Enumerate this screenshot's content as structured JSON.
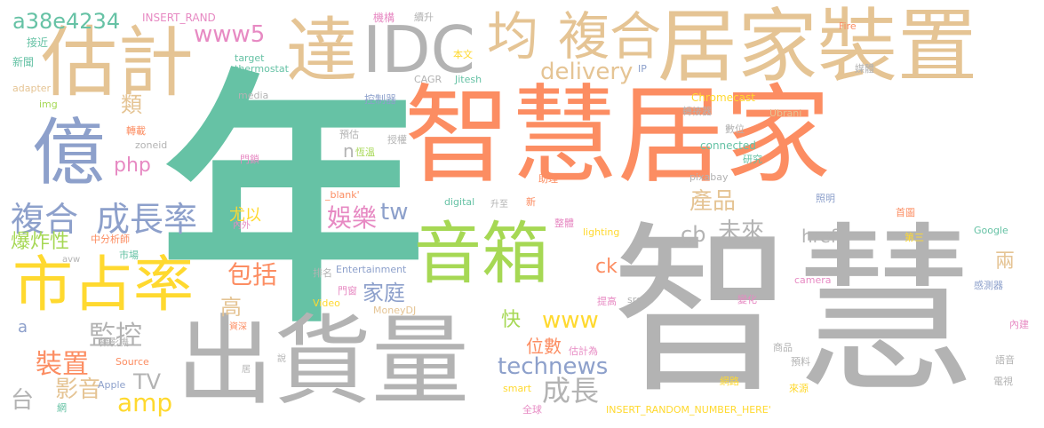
{
  "palette": {
    "teal": "#66c2a5",
    "orange": "#fc8d62",
    "blue": "#8da0cb",
    "pink": "#e78ac3",
    "lime": "#a6d854",
    "yellow": "#ffd92f",
    "tan": "#e5c494",
    "gray": "#b3b3b3"
  },
  "words": [
    {
      "id": "nian",
      "text": "年",
      "color": "#66c2a5"
    },
    {
      "id": "zhihui-jujia",
      "text": "智慧居家",
      "color": "#fc8d62"
    },
    {
      "id": "zhihui",
      "text": "智慧",
      "color": "#b3b3b3"
    },
    {
      "id": "chuhuoliang",
      "text": "出貨量",
      "color": "#b3b3b3"
    },
    {
      "id": "jujia-zhuangzhi",
      "text": "居家裝置",
      "color": "#e5c494"
    },
    {
      "id": "guji",
      "text": "估計",
      "color": "#e5c494"
    },
    {
      "id": "da",
      "text": "達",
      "color": "#e5c494"
    },
    {
      "id": "idc",
      "text": "IDC",
      "color": "#b3b3b3"
    },
    {
      "id": "jun",
      "text": "均",
      "color": "#e5c494"
    },
    {
      "id": "fuhe-top",
      "text": "複合",
      "color": "#e5c494"
    },
    {
      "id": "yi",
      "text": "億",
      "color": "#8da0cb"
    },
    {
      "id": "shizhanlv",
      "text": "市占率",
      "color": "#ffd92f"
    },
    {
      "id": "yinxiang",
      "text": "音箱",
      "color": "#a6d854"
    },
    {
      "id": "fuhe",
      "text": "複合",
      "color": "#8da0cb"
    },
    {
      "id": "chengzhanglv",
      "text": "成長率",
      "color": "#8da0cb"
    },
    {
      "id": "a38e",
      "text": "a38e4234",
      "color": "#66c2a5"
    },
    {
      "id": "insert-rand",
      "text": "INSERT_RAND",
      "color": "#e78ac3"
    },
    {
      "id": "www5",
      "text": "www5",
      "color": "#e78ac3"
    },
    {
      "id": "delivery",
      "text": "delivery",
      "color": "#e5c494"
    },
    {
      "id": "technews",
      "text": "technews",
      "color": "#8da0cb"
    },
    {
      "id": "chengzhang",
      "text": "成長",
      "color": "#b3b3b3"
    },
    {
      "id": "amp",
      "text": "amp",
      "color": "#ffd92f"
    },
    {
      "id": "tv",
      "text": "TV",
      "color": "#b3b3b3"
    },
    {
      "id": "jiankong",
      "text": "監控",
      "color": "#b3b3b3"
    },
    {
      "id": "zhuangzhi",
      "text": "裝置",
      "color": "#fc8d62"
    },
    {
      "id": "yingyin",
      "text": "影音",
      "color": "#e5c494"
    },
    {
      "id": "tai",
      "text": "台",
      "color": "#b3b3b3"
    },
    {
      "id": "baozhaxing",
      "text": "爆炸性",
      "color": "#a6d854"
    },
    {
      "id": "php",
      "text": "php",
      "color": "#e78ac3"
    },
    {
      "id": "lei",
      "text": "類",
      "color": "#e5c494"
    },
    {
      "id": "baokuo",
      "text": "包括",
      "color": "#fc8d62"
    },
    {
      "id": "gao",
      "text": "高",
      "color": "#e5c494"
    },
    {
      "id": "yule",
      "text": "娛樂",
      "color": "#e78ac3"
    },
    {
      "id": "jiating",
      "text": "家庭",
      "color": "#8da0cb"
    },
    {
      "id": "tw",
      "text": "tw",
      "color": "#8da0cb"
    },
    {
      "id": "cb",
      "text": "cb",
      "color": "#b3b3b3"
    },
    {
      "id": "weilai",
      "text": "未來",
      "color": "#b3b3b3"
    },
    {
      "id": "chanpin",
      "text": "產品",
      "color": "#e5c494"
    },
    {
      "id": "href",
      "text": "href",
      "color": "#b3b3b3"
    },
    {
      "id": "liang",
      "text": "兩",
      "color": "#e5c494"
    },
    {
      "id": "ck",
      "text": "ck",
      "color": "#fc8d62"
    },
    {
      "id": "www",
      "text": "www",
      "color": "#ffd92f"
    },
    {
      "id": "kuai",
      "text": "快",
      "color": "#a6d854"
    },
    {
      "id": "weishu",
      "text": "位數",
      "color": "#fc8d62"
    },
    {
      "id": "youyi",
      "text": "尤以",
      "color": "#ffd92f"
    },
    {
      "id": "n",
      "text": "n",
      "color": "#b3b3b3"
    },
    {
      "id": "a",
      "text": "a",
      "color": "#8da0cb"
    },
    {
      "id": "jiejin",
      "text": "接近",
      "color": "#66c2a5"
    },
    {
      "id": "xinwen",
      "text": "新聞",
      "color": "#66c2a5"
    },
    {
      "id": "adapter",
      "text": "adapter",
      "color": "#e5c494"
    },
    {
      "id": "img",
      "text": "img",
      "color": "#a6d854"
    },
    {
      "id": "target",
      "text": "target",
      "color": "#66c2a5"
    },
    {
      "id": "thermostat",
      "text": "thermostat",
      "color": "#66c2a5"
    },
    {
      "id": "media",
      "text": "media",
      "color": "#b3b3b3"
    },
    {
      "id": "zhuanzai",
      "text": "轉載",
      "color": "#fc8d62"
    },
    {
      "id": "zoneid",
      "text": "zoneid",
      "color": "#b3b3b3"
    },
    {
      "id": "mensuo",
      "text": "門鎖",
      "color": "#e78ac3"
    },
    {
      "id": "zhongfenxishi",
      "text": "中分析師",
      "color": "#fc8d62"
    },
    {
      "id": "avw",
      "text": "avw",
      "color": "#b3b3b3"
    },
    {
      "id": "shichang",
      "text": "市場",
      "color": "#66c2a5"
    },
    {
      "id": "jidui",
      "text": "機構",
      "color": "#e78ac3"
    },
    {
      "id": "xusheng",
      "text": "續升",
      "color": "#b3b3b3"
    },
    {
      "id": "benwen",
      "text": "本文",
      "color": "#ffd92f"
    },
    {
      "id": "cagr",
      "text": "CAGR",
      "color": "#b3b3b3"
    },
    {
      "id": "jitesh",
      "text": "Jitesh",
      "color": "#66c2a5"
    },
    {
      "id": "kongzhiqi",
      "text": "控制器",
      "color": "#8da0cb"
    },
    {
      "id": "yugu",
      "text": "預估",
      "color": "#b3b3b3"
    },
    {
      "id": "hengwen",
      "text": "恆溫",
      "color": "#a6d854"
    },
    {
      "id": "shoubian",
      "text": "授權",
      "color": "#b3b3b3"
    },
    {
      "id": "ip",
      "text": "IP",
      "color": "#8da0cb"
    },
    {
      "id": "fire",
      "text": "Fire",
      "color": "#fc8d62"
    },
    {
      "id": "meiti",
      "text": "媒體",
      "color": "#b3b3b3"
    },
    {
      "id": "chromecast",
      "text": "Chromecast",
      "color": "#ffd92f"
    },
    {
      "id": "zhuanjieqi",
      "text": "轉接器",
      "color": "#b3b3b3"
    },
    {
      "id": "ubrani",
      "text": "Ubrani",
      "color": "#e5c494"
    },
    {
      "id": "shuwei",
      "text": "數位",
      "color": "#b3b3b3"
    },
    {
      "id": "connected",
      "text": "connected",
      "color": "#66c2a5"
    },
    {
      "id": "yanjiu",
      "text": "研究",
      "color": "#66c2a5"
    },
    {
      "id": "zhuli",
      "text": "助理",
      "color": "#fc8d62"
    },
    {
      "id": "pixabay",
      "text": "pixabay",
      "color": "#b3b3b3"
    },
    {
      "id": "digital",
      "text": "digital",
      "color": "#66c2a5"
    },
    {
      "id": "blank",
      "text": "_blank'",
      "color": "#fc8d62"
    },
    {
      "id": "neiwai",
      "text": "內外",
      "color": "#e78ac3"
    },
    {
      "id": "xin",
      "text": "新",
      "color": "#fc8d62"
    },
    {
      "id": "zhengti",
      "text": "整體",
      "color": "#e78ac3"
    },
    {
      "id": "zhaoming",
      "text": "照明",
      "color": "#8da0cb"
    },
    {
      "id": "shoutu",
      "text": "首圖",
      "color": "#fc8d62"
    },
    {
      "id": "google",
      "text": "Google",
      "color": "#66c2a5"
    },
    {
      "id": "disan",
      "text": "第三",
      "color": "#ffd92f"
    },
    {
      "id": "shengzhi",
      "text": "升至",
      "color": "#b3b3b3"
    },
    {
      "id": "lighting",
      "text": "lighting",
      "color": "#ffd92f"
    },
    {
      "id": "paiming",
      "text": "排名",
      "color": "#b3b3b3"
    },
    {
      "id": "entertainment",
      "text": "Entertainment",
      "color": "#8da0cb"
    },
    {
      "id": "menchuang",
      "text": "門窗",
      "color": "#e78ac3"
    },
    {
      "id": "video",
      "text": "Video",
      "color": "#ffd92f"
    },
    {
      "id": "moneydj",
      "text": "MoneyDJ",
      "color": "#e5c494"
    },
    {
      "id": "tigao",
      "text": "提高",
      "color": "#e78ac3"
    },
    {
      "id": "src",
      "text": "src",
      "color": "#b3b3b3"
    },
    {
      "id": "bianhua",
      "text": "變化",
      "color": "#e78ac3"
    },
    {
      "id": "camera",
      "text": "camera",
      "color": "#e78ac3"
    },
    {
      "id": "ganceqi",
      "text": "感測器",
      "color": "#8da0cb"
    },
    {
      "id": "ziliao",
      "text": "資深",
      "color": "#fc8d62"
    },
    {
      "id": "sheyingji",
      "text": "攝影機",
      "color": "#b3b3b3"
    },
    {
      "id": "gujiwei",
      "text": "估計為",
      "color": "#e78ac3"
    },
    {
      "id": "neijian",
      "text": "內建",
      "color": "#e78ac3"
    },
    {
      "id": "shangpin",
      "text": "商品",
      "color": "#b3b3b3"
    },
    {
      "id": "yuliao",
      "text": "預料",
      "color": "#b3b3b3"
    },
    {
      "id": "source",
      "text": "Source",
      "color": "#fc8d62"
    },
    {
      "id": "ju",
      "text": "居",
      "color": "#b3b3b3"
    },
    {
      "id": "shuo",
      "text": "說",
      "color": "#b3b3b3"
    },
    {
      "id": "apple",
      "text": "Apple",
      "color": "#8da0cb"
    },
    {
      "id": "smart",
      "text": "smart",
      "color": "#ffd92f"
    },
    {
      "id": "wanglu",
      "text": "網路",
      "color": "#ffd92f"
    },
    {
      "id": "laiyuan",
      "text": "來源",
      "color": "#ffd92f"
    },
    {
      "id": "yuyin",
      "text": "語音",
      "color": "#b3b3b3"
    },
    {
      "id": "dianshi",
      "text": "電視",
      "color": "#b3b3b3"
    },
    {
      "id": "wang",
      "text": "網",
      "color": "#66c2a5"
    },
    {
      "id": "quanqiu",
      "text": "全球",
      "color": "#e78ac3"
    },
    {
      "id": "insert-full",
      "text": "INSERT_RANDOM_NUMBER_HERE'",
      "color": "#ffd92f"
    }
  ]
}
